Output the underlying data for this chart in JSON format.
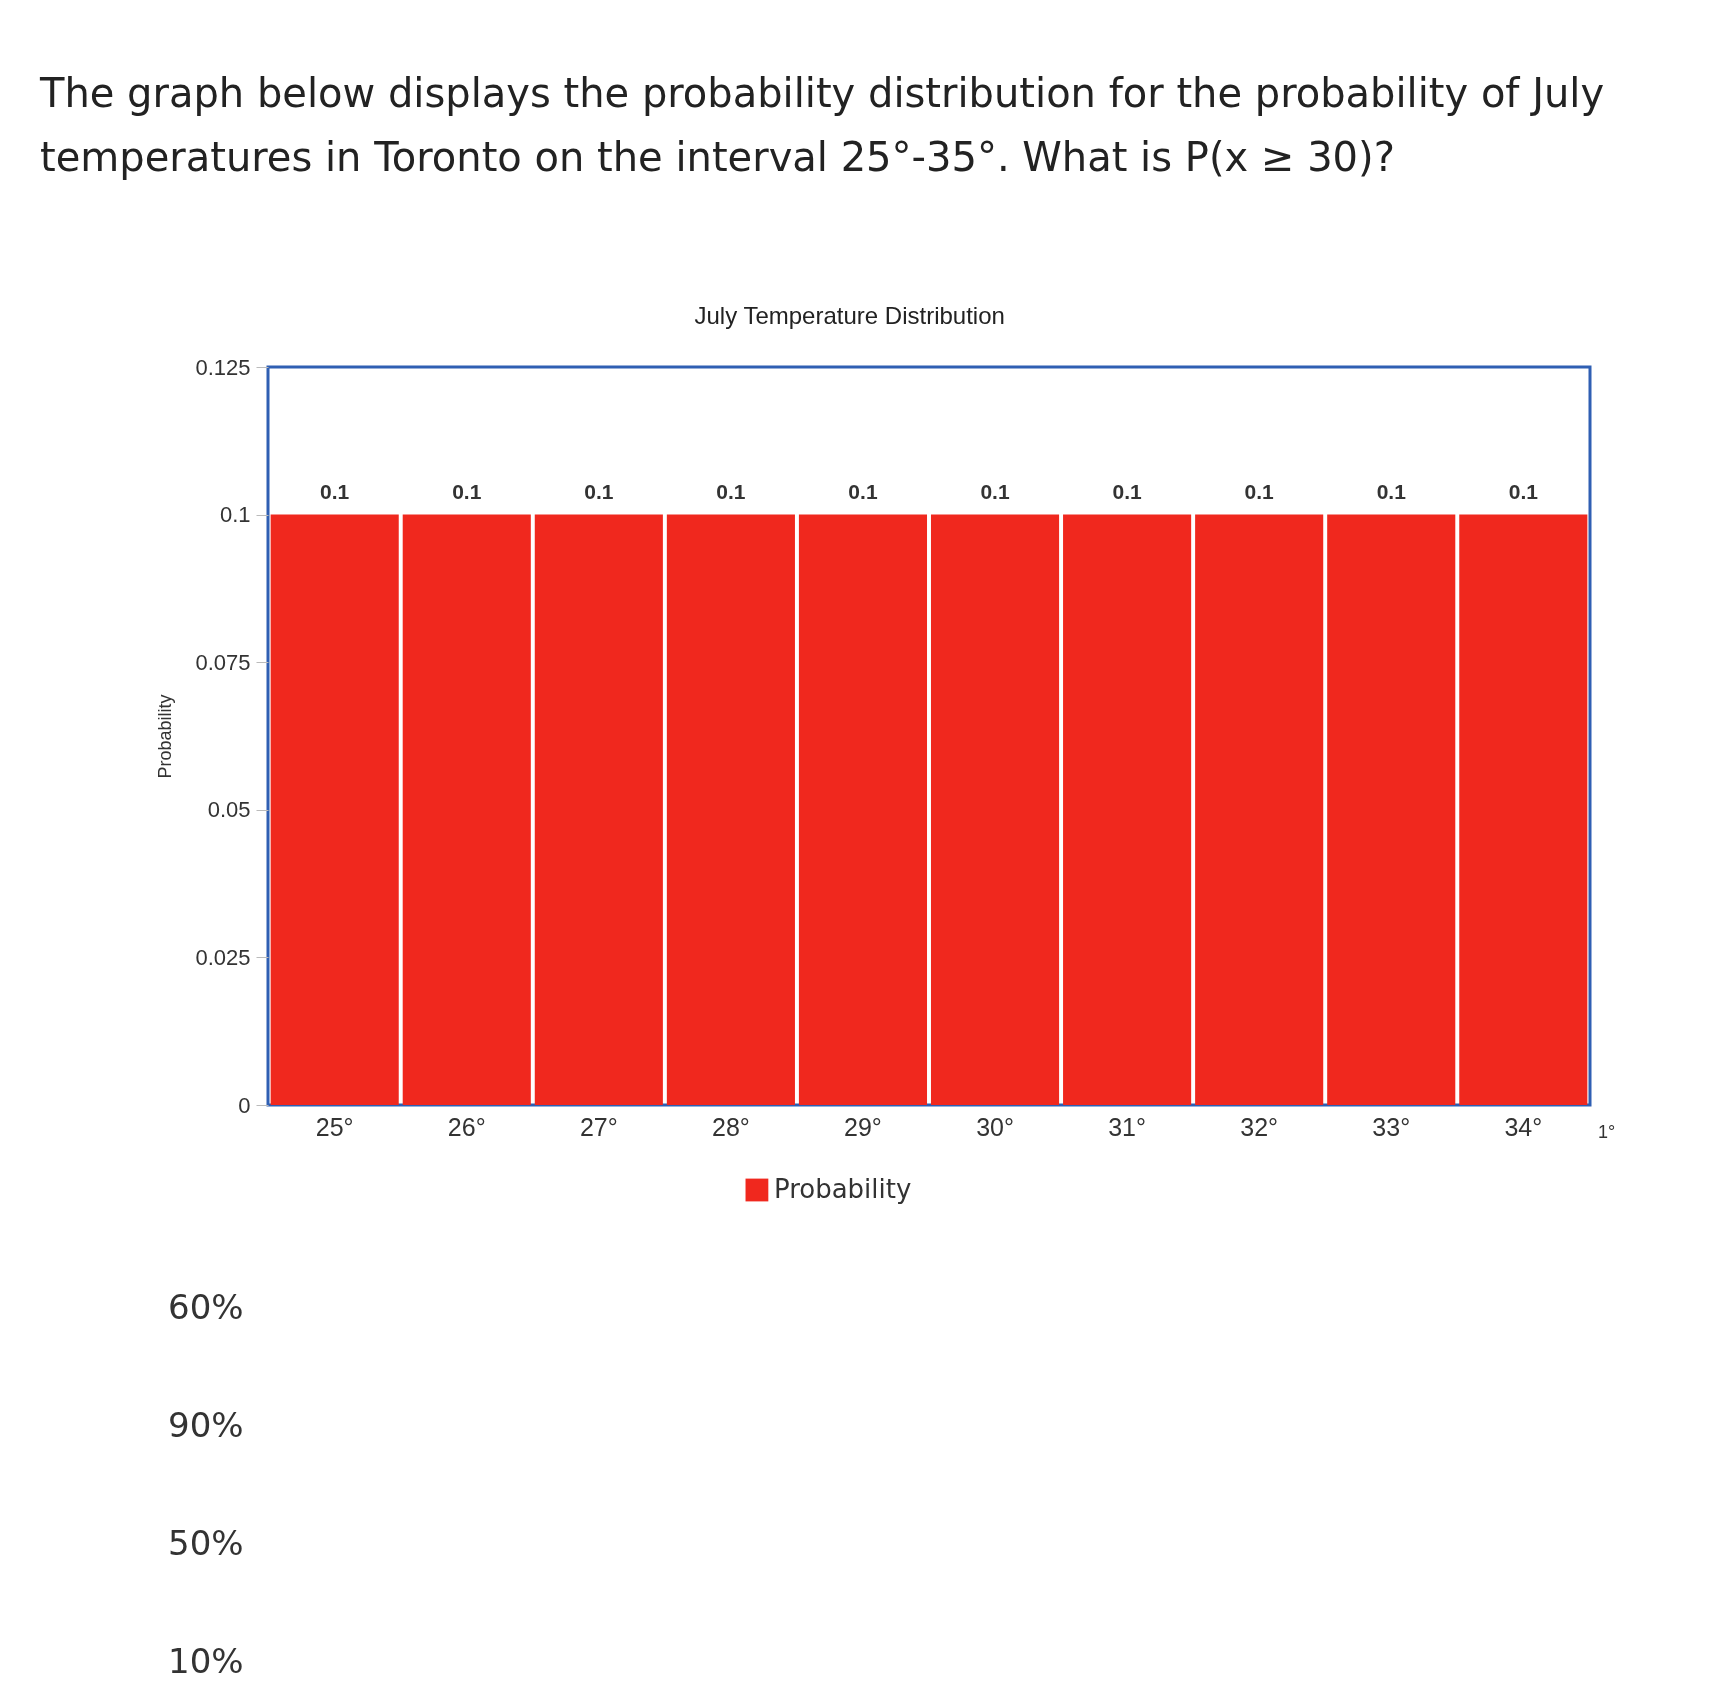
{
  "chart_data": {
    "type": "bar",
    "title": "The graph below displays the probability distribution for the probability of July temperatures in Toronto on the interval 25°-35°. What is P(x ≥ 30)?",
    "subtitle": "July Temperature Distribution",
    "ylabel": "Probability",
    "categories": [
      "25°",
      "26°",
      "27°",
      "28°",
      "29°",
      "30°",
      "31°",
      "32°",
      "33°",
      "34°"
    ],
    "series": [
      {
        "name": "Probability",
        "color": "#f0281e",
        "values": [
          0.1,
          0.1,
          0.1,
          0.1,
          0.1,
          0.1,
          0.1,
          0.1,
          0.1,
          0.1
        ]
      }
    ],
    "ylim": [
      0,
      0.125
    ],
    "yticks": [
      0,
      0.025,
      0.05,
      0.075,
      0.1,
      0.125
    ],
    "data_labels": true,
    "legend": "bottom",
    "annotations": [
      "60%",
      "90%",
      "50%",
      "10%",
      "1°"
    ]
  }
}
